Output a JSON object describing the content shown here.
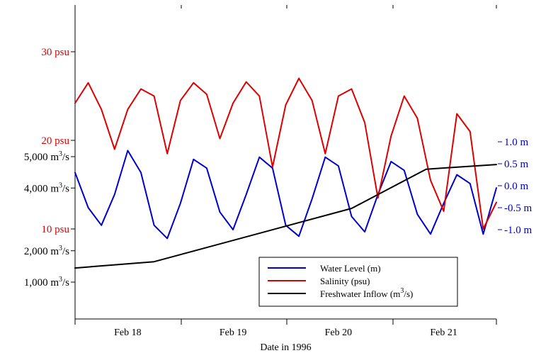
{
  "chart_data": {
    "type": "line",
    "title": "",
    "xlabel": "Date in 1996",
    "x_ticks": [
      "Feb 18",
      "Feb 19",
      "Feb 20",
      "Feb 21"
    ],
    "xlim": [
      "1996-02-17T12:00",
      "1996-02-21T12:00"
    ],
    "axes": {
      "salinity": {
        "unit": "psu",
        "ticks": [
          {
            "value": 10,
            "label": "10 psu"
          },
          {
            "value": 20,
            "label": "20 psu"
          },
          {
            "value": 30,
            "label": "30 psu"
          }
        ]
      },
      "inflow": {
        "unit": "m3/s",
        "ticks": [
          {
            "value": 1000,
            "num": "1,000 m",
            "sup": "3",
            "tail": "/s"
          },
          {
            "value": 2000,
            "num": "2,000 m",
            "sup": "3",
            "tail": "/s"
          },
          {
            "value": 4000,
            "num": "4,000 m",
            "sup": "3",
            "tail": "/s"
          },
          {
            "value": 5000,
            "num": "5,000 m",
            "sup": "3",
            "tail": "/s"
          }
        ]
      },
      "water_level": {
        "unit": "m",
        "ticks": [
          {
            "value": 1.0,
            "label": "1.0 m"
          },
          {
            "value": 0.5,
            "label": "0.5 m"
          },
          {
            "value": 0.0,
            "label": "0.0 m"
          },
          {
            "value": -0.5,
            "label": "-0.5 m"
          },
          {
            "value": -1.0,
            "label": "-1.0 m"
          }
        ]
      }
    },
    "series": [
      {
        "name": "Water Level (m)",
        "axis": "water_level",
        "color": "#0000cc",
        "x": [
          "1996-02-17T12:00",
          "1996-02-17T15:00",
          "1996-02-17T18:00",
          "1996-02-17T21:00",
          "1996-02-18T00:00",
          "1996-02-18T03:00",
          "1996-02-18T06:00",
          "1996-02-18T09:00",
          "1996-02-18T12:00",
          "1996-02-18T15:00",
          "1996-02-18T18:00",
          "1996-02-18T21:00",
          "1996-02-19T00:00",
          "1996-02-19T03:00",
          "1996-02-19T06:00",
          "1996-02-19T09:00",
          "1996-02-19T12:00",
          "1996-02-19T15:00",
          "1996-02-19T18:00",
          "1996-02-19T21:00",
          "1996-02-20T00:00",
          "1996-02-20T03:00",
          "1996-02-20T06:00",
          "1996-02-20T09:00",
          "1996-02-20T12:00",
          "1996-02-20T15:00",
          "1996-02-20T18:00",
          "1996-02-20T21:00",
          "1996-02-21T00:00",
          "1996-02-21T03:00",
          "1996-02-21T06:00",
          "1996-02-21T09:00",
          "1996-02-21T12:00"
        ],
        "y": [
          0.3,
          -0.5,
          -0.9,
          -0.2,
          0.8,
          0.3,
          -0.9,
          -1.2,
          -0.4,
          0.6,
          0.4,
          -0.6,
          -1.0,
          -0.2,
          0.65,
          0.4,
          -0.9,
          -1.15,
          -0.3,
          0.65,
          0.45,
          -0.7,
          -1.05,
          -0.2,
          0.55,
          0.35,
          -0.65,
          -1.1,
          -0.4,
          0.25,
          0.05,
          -1.1,
          -0.05
        ]
      },
      {
        "name": "Salinity (psu)",
        "axis": "salinity",
        "color": "#dd0000",
        "x": [
          "1996-02-17T12:00",
          "1996-02-17T15:00",
          "1996-02-17T18:00",
          "1996-02-17T21:00",
          "1996-02-18T00:00",
          "1996-02-18T03:00",
          "1996-02-18T06:00",
          "1996-02-18T09:00",
          "1996-02-18T12:00",
          "1996-02-18T15:00",
          "1996-02-18T18:00",
          "1996-02-18T21:00",
          "1996-02-19T00:00",
          "1996-02-19T03:00",
          "1996-02-19T06:00",
          "1996-02-19T09:00",
          "1996-02-19T12:00",
          "1996-02-19T15:00",
          "1996-02-19T18:00",
          "1996-02-19T21:00",
          "1996-02-20T00:00",
          "1996-02-20T03:00",
          "1996-02-20T06:00",
          "1996-02-20T09:00",
          "1996-02-20T12:00",
          "1996-02-20T15:00",
          "1996-02-20T18:00",
          "1996-02-20T21:00",
          "1996-02-21T00:00",
          "1996-02-21T03:00",
          "1996-02-21T06:00",
          "1996-02-21T09:00",
          "1996-02-21T12:00"
        ],
        "y": [
          24.2,
          26.5,
          23.5,
          19.0,
          23.5,
          25.8,
          25.0,
          18.5,
          24.5,
          26.5,
          25.2,
          20.2,
          24.2,
          26.6,
          25.0,
          17.0,
          24.0,
          27.0,
          24.5,
          18.5,
          25.0,
          25.8,
          22.0,
          13.5,
          20.5,
          25.0,
          22.5,
          15.5,
          12.0,
          23.0,
          21.0,
          10.0,
          13.0
        ]
      },
      {
        "name": "Freshwater Inflow (m3/s)",
        "label": "Freshwater Inflow (m",
        "label_sup": "3",
        "label_tail": "/s)",
        "axis": "inflow",
        "color": "#000000",
        "x": [
          "1996-02-17T12:00",
          "1996-02-18T06:00",
          "1996-02-20T03:00",
          "1996-02-20T20:00",
          "1996-02-21T12:00"
        ],
        "y": [
          1450,
          1650,
          3350,
          4600,
          4750
        ]
      }
    ],
    "legend": {
      "placement": "bottom-right"
    },
    "grid": false
  }
}
